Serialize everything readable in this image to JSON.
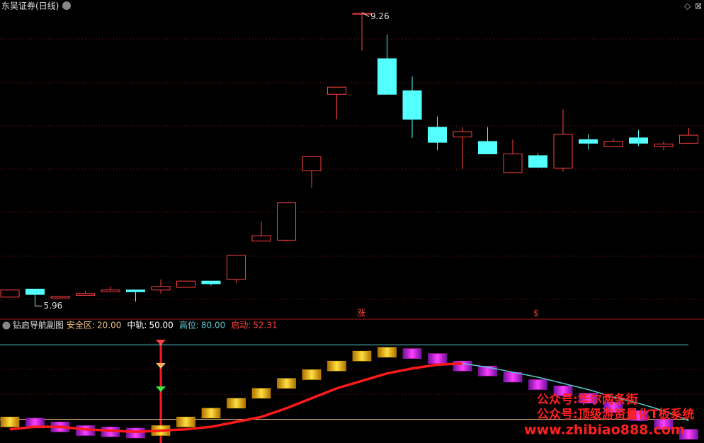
{
  "chart_data": [
    {
      "type": "candlestick",
      "title": "东吴证券(日线)",
      "open": [
        6.06,
        6.15,
        6.05,
        6.08,
        6.12,
        6.14,
        6.14,
        6.17,
        6.24,
        6.26,
        6.69,
        6.7,
        7.48,
        8.34,
        9.24,
        8.74,
        8.38,
        7.97,
        7.86,
        7.81,
        7.46,
        7.65,
        7.51,
        7.83,
        7.75,
        7.85,
        7.75,
        7.79
      ],
      "high": [
        6.14,
        6.15,
        6.07,
        6.13,
        6.18,
        6.14,
        6.26,
        6.24,
        6.24,
        6.53,
        6.91,
        7.12,
        7.64,
        8.42,
        9.26,
        9.01,
        8.54,
        8.09,
        7.97,
        7.97,
        7.83,
        7.68,
        8.17,
        7.89,
        7.84,
        7.94,
        7.81,
        7.96
      ],
      "low": [
        6.06,
        5.96,
        6.05,
        6.08,
        6.12,
        6.01,
        6.1,
        6.17,
        6.19,
        6.22,
        6.69,
        6.69,
        7.29,
        8.06,
        8.83,
        8.34,
        7.85,
        7.71,
        7.5,
        7.67,
        7.46,
        7.52,
        7.47,
        7.72,
        7.75,
        7.76,
        7.71,
        7.79
      ],
      "close": [
        6.14,
        6.09,
        6.07,
        6.1,
        6.14,
        6.12,
        6.18,
        6.24,
        6.21,
        6.53,
        6.75,
        7.12,
        7.64,
        8.42,
        9.25,
        8.34,
        8.06,
        7.8,
        7.92,
        7.67,
        7.67,
        7.52,
        7.89,
        7.79,
        7.81,
        7.79,
        7.78,
        7.88
      ],
      "up_color": "#ff4040",
      "down_color": "#54ffff",
      "ylim": [
        5.82,
        9.4
      ],
      "annotations": [
        {
          "label": "9.26",
          "value": 9.26
        },
        {
          "label": "5.96",
          "value": 5.96
        }
      ],
      "markers": [
        "涨",
        "$"
      ]
    },
    {
      "type": "line",
      "title": "钻启导航副图",
      "ylim": [
        1,
        91
      ],
      "levels": [
        {
          "name": "安全区:",
          "value": 20,
          "label": "20.00",
          "color": "#f0c080",
          "line": true
        },
        {
          "name": "中轨:",
          "value": 50,
          "label": "50.00",
          "color": "#ffffff",
          "line": false
        },
        {
          "name": "高位:",
          "value": 80,
          "label": "80.00",
          "color": "#5cc8d0",
          "line": true
        },
        {
          "name": "启动:",
          "value": 52.31,
          "label": "52.31",
          "color": "#ff4040",
          "line": false
        }
      ],
      "series": [
        {
          "color": "#ff1a1a",
          "values": [
            12,
            14,
            14,
            12,
            11,
            10,
            11,
            12,
            14,
            18,
            22,
            29,
            37,
            45,
            51,
            57,
            61,
            64,
            65,
            null,
            null,
            null,
            null,
            null,
            null,
            null,
            null,
            null
          ]
        },
        {
          "color": "#5cc8d0",
          "values": [
            null,
            null,
            null,
            null,
            null,
            null,
            null,
            null,
            null,
            null,
            null,
            null,
            null,
            null,
            null,
            null,
            null,
            null,
            65,
            62,
            58,
            54,
            49,
            44,
            38,
            33,
            27,
            19
          ]
        }
      ],
      "bars": {
        "values": [
          18,
          17,
          14,
          11,
          10,
          9,
          11,
          18,
          25,
          33,
          41,
          49,
          56,
          63,
          71,
          74,
          73,
          69,
          63,
          59,
          54,
          48,
          43,
          37,
          30,
          23,
          16,
          8
        ],
        "colors": [
          "#f0b000",
          "#c020d0",
          "#c020d0",
          "#c020d0",
          "#802090",
          "#c020d0",
          "#f0b000",
          "#f0b000",
          "#f0b000",
          "#f0b000",
          "#f0b000",
          "#f0b000",
          "#f0b000",
          "#f0b000",
          "#f0b000",
          "#f0b000",
          "#c020d0",
          "#c020d0",
          "#c020d0",
          "#c020d0",
          "#c020d0",
          "#c020d0",
          "#c020d0",
          "#c020d0",
          "#c020d0",
          "#c020d0",
          "#c020d0",
          "#c020d0"
        ]
      }
    }
  ],
  "watermarks": [
    "公众号:华尔两条街",
    "公众号:顶级游资量化T板系统",
    "www.zhibiao888.com"
  ]
}
